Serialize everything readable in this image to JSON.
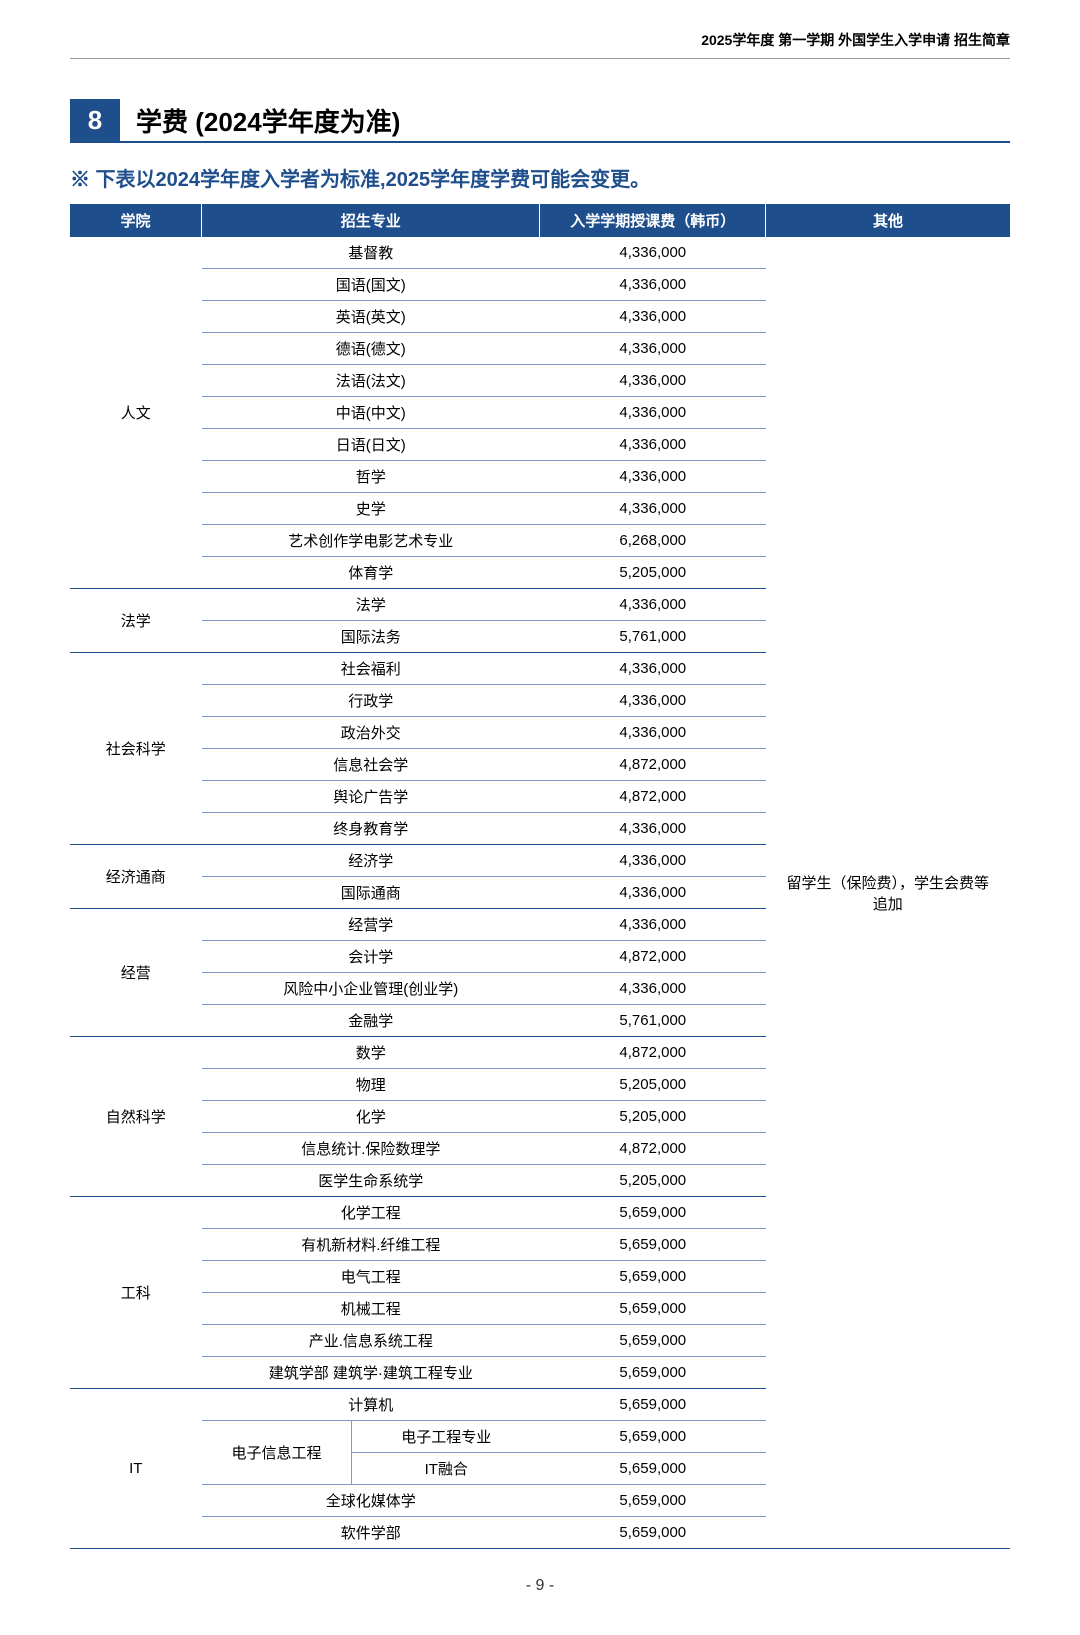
{
  "header_text": "2025学年度 第一学期 外国学生入学申请 招生简章",
  "section_number": "8",
  "section_title": "学费 (2024学年度为准)",
  "note_text": "※ 下表以2024学年度入学者为标准,2025学年度学费可能会变更。",
  "page_number": "- 9 -",
  "columns": {
    "college": "学院",
    "major": "招生专业",
    "fee": "入学学期授课费（韩币）",
    "other": "其他"
  },
  "other_note": "留学生（保险费），学生会费等 追加",
  "colors": {
    "header_bg": "#1f4e8c",
    "header_text": "#ffffff",
    "border": "#7a9cc6",
    "note_color": "#1f4e8c"
  },
  "colleges": [
    {
      "name": "人文",
      "majors": [
        {
          "name": "基督教",
          "fee": "4,336,000"
        },
        {
          "name": "国语(国文)",
          "fee": "4,336,000"
        },
        {
          "name": "英语(英文)",
          "fee": "4,336,000"
        },
        {
          "name": "德语(德文)",
          "fee": "4,336,000"
        },
        {
          "name": "法语(法文)",
          "fee": "4,336,000"
        },
        {
          "name": "中语(中文)",
          "fee": "4,336,000"
        },
        {
          "name": "日语(日文)",
          "fee": "4,336,000"
        },
        {
          "name": "哲学",
          "fee": "4,336,000"
        },
        {
          "name": "史学",
          "fee": "4,336,000"
        },
        {
          "name": "艺术创作学电影艺术专业",
          "fee": "6,268,000"
        },
        {
          "name": "体育学",
          "fee": "5,205,000"
        }
      ]
    },
    {
      "name": "法学",
      "majors": [
        {
          "name": "法学",
          "fee": "4,336,000"
        },
        {
          "name": "国际法务",
          "fee": "5,761,000"
        }
      ]
    },
    {
      "name": "社会科学",
      "majors": [
        {
          "name": "社会福利",
          "fee": "4,336,000"
        },
        {
          "name": "行政学",
          "fee": "4,336,000"
        },
        {
          "name": "政治外交",
          "fee": "4,336,000"
        },
        {
          "name": "信息社会学",
          "fee": "4,872,000"
        },
        {
          "name": "舆论广告学",
          "fee": "4,872,000"
        },
        {
          "name": "终身教育学",
          "fee": "4,336,000"
        }
      ]
    },
    {
      "name": "经济通商",
      "majors": [
        {
          "name": "经济学",
          "fee": "4,336,000"
        },
        {
          "name": "国际通商",
          "fee": "4,336,000"
        }
      ]
    },
    {
      "name": "经营",
      "majors": [
        {
          "name": "经营学",
          "fee": "4,336,000"
        },
        {
          "name": "会计学",
          "fee": "4,872,000"
        },
        {
          "name": "风险中小企业管理(创业学)",
          "fee": "4,336,000"
        },
        {
          "name": "金融学",
          "fee": "5,761,000"
        }
      ]
    },
    {
      "name": "自然科学",
      "majors": [
        {
          "name": "数学",
          "fee": "4,872,000"
        },
        {
          "name": "物理",
          "fee": "5,205,000"
        },
        {
          "name": "化学",
          "fee": "5,205,000"
        },
        {
          "name": "信息统计.保险数理学",
          "fee": "4,872,000"
        },
        {
          "name": "医学生命系统学",
          "fee": "5,205,000"
        }
      ]
    },
    {
      "name": "工科",
      "majors": [
        {
          "name": "化学工程",
          "fee": "5,659,000"
        },
        {
          "name": "有机新材料.纤维工程",
          "fee": "5,659,000"
        },
        {
          "name": "电气工程",
          "fee": "5,659,000"
        },
        {
          "name": "机械工程",
          "fee": "5,659,000"
        },
        {
          "name": "产业.信息系统工程",
          "fee": "5,659,000"
        },
        {
          "name": "建筑学部 建筑学·建筑工程专业",
          "fee": "5,659,000"
        }
      ]
    }
  ],
  "it_college": {
    "name": "IT",
    "rows": [
      {
        "major_span": "计算机",
        "fee": "5,659,000"
      },
      {
        "group": "电子信息工程",
        "sub": "电子工程专业",
        "fee": "5,659,000"
      },
      {
        "group": "",
        "sub": "IT融合",
        "fee": "5,659,000"
      },
      {
        "major_span": "全球化媒体学",
        "fee": "5,659,000"
      },
      {
        "major_span": "软件学部",
        "fee": "5,659,000"
      }
    ]
  }
}
